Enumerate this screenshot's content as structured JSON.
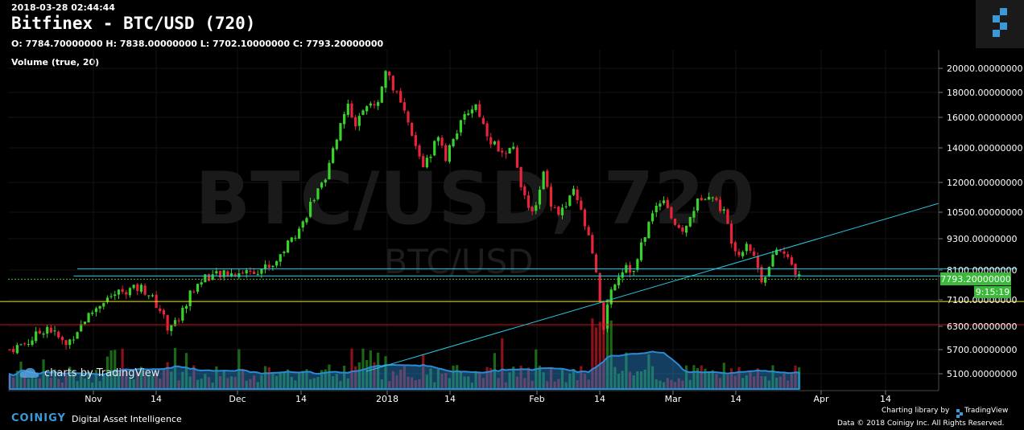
{
  "header": {
    "timestamp": "2018-03-28 02:44:44",
    "title": "Bitfinex - BTC/USD (720)",
    "ohlc": "O: 7784.70000000 H: 7838.00000000 L: 7702.10000000 C: 7793.20000000",
    "volume_legend": "Volume (true, 20)"
  },
  "watermark": {
    "big": "BTC/USD, 720",
    "small": "BTC/USD",
    "tradingview": "charts by TradingView"
  },
  "price_tag": {
    "value": "7793.20000000",
    "countdown": "9:15:19"
  },
  "footer": {
    "brand": "COINIGY",
    "tagline": "Digital Asset Intelligence",
    "charting_library": "Charting library by",
    "tradingview": "TradingView",
    "copyright": "Data © 2018 Coinigy Inc. All Rights Reserved."
  },
  "colors": {
    "up": "#3ad12c",
    "down": "#e8243a",
    "vol_up": "#1f7a1a",
    "vol_down": "#a3141f",
    "vol_ma": "#2a8ad4",
    "trend": "#27c7e0",
    "support_yellow": "#f0e62a",
    "support_red": "#c8141a",
    "current": "#3ab93a"
  },
  "chart_data": {
    "type": "candlestick",
    "y_ticks": [
      5100,
      5700,
      6300,
      7100,
      8100,
      9300,
      10500,
      12000,
      14000,
      16000,
      18000,
      20000
    ],
    "y_tick_labels": [
      "5100.00000000",
      "5700.00000000",
      "6300.00000000",
      "7100.00000000",
      "8100.00000000",
      "9300.00000000",
      "10500.00000000",
      "12000.00000000",
      "14000.00000000",
      "16000.00000000",
      "18000.00000000",
      "20000.00000000"
    ],
    "x_ticks": [
      "Nov",
      "14",
      "Dec",
      "14",
      "2018",
      "14",
      "Feb",
      "14",
      "Mar",
      "14",
      "Apr",
      "14"
    ],
    "close_path": [
      [
        0,
        5700
      ],
      [
        5,
        5900
      ],
      [
        10,
        6300
      ],
      [
        15,
        5800
      ],
      [
        20,
        6500
      ],
      [
        25,
        7100
      ],
      [
        30,
        7400
      ],
      [
        35,
        7500
      ],
      [
        37,
        7300
      ],
      [
        40,
        6800
      ],
      [
        42,
        6300
      ],
      [
        45,
        6500
      ],
      [
        48,
        7300
      ],
      [
        52,
        7900
      ],
      [
        55,
        7900
      ],
      [
        60,
        8000
      ],
      [
        65,
        8100
      ],
      [
        70,
        8300
      ],
      [
        75,
        9300
      ],
      [
        78,
        10000
      ],
      [
        80,
        10900
      ],
      [
        82,
        11500
      ],
      [
        84,
        12000
      ],
      [
        86,
        14000
      ],
      [
        88,
        15500
      ],
      [
        90,
        17000
      ],
      [
        92,
        15500
      ],
      [
        95,
        16600
      ],
      [
        98,
        17500
      ],
      [
        100,
        19700
      ],
      [
        102,
        18500
      ],
      [
        104,
        17000
      ],
      [
        106,
        15500
      ],
      [
        108,
        14000
      ],
      [
        110,
        13000
      ],
      [
        112,
        13500
      ],
      [
        114,
        15000
      ],
      [
        116,
        13500
      ],
      [
        118,
        14800
      ],
      [
        120,
        15500
      ],
      [
        122,
        16500
      ],
      [
        124,
        17000
      ],
      [
        126,
        15500
      ],
      [
        128,
        14500
      ],
      [
        130,
        14000
      ],
      [
        132,
        13500
      ],
      [
        134,
        14000
      ],
      [
        136,
        12000
      ],
      [
        138,
        10500
      ],
      [
        140,
        11000
      ],
      [
        142,
        12500
      ],
      [
        144,
        11000
      ],
      [
        146,
        10500
      ],
      [
        148,
        10800
      ],
      [
        150,
        11500
      ],
      [
        152,
        10500
      ],
      [
        154,
        9300
      ],
      [
        156,
        8100
      ],
      [
        158,
        6200
      ],
      [
        160,
        7500
      ],
      [
        162,
        8000
      ],
      [
        164,
        8300
      ],
      [
        166,
        8000
      ],
      [
        168,
        9000
      ],
      [
        170,
        10000
      ],
      [
        172,
        10800
      ],
      [
        174,
        11300
      ],
      [
        176,
        10300
      ],
      [
        178,
        9600
      ],
      [
        180,
        9800
      ],
      [
        182,
        10700
      ],
      [
        184,
        11300
      ],
      [
        186,
        11500
      ],
      [
        188,
        11000
      ],
      [
        190,
        10500
      ],
      [
        192,
        9300
      ],
      [
        194,
        8700
      ],
      [
        196,
        9200
      ],
      [
        198,
        8600
      ],
      [
        200,
        7800
      ],
      [
        202,
        8200
      ],
      [
        204,
        8900
      ],
      [
        206,
        8700
      ],
      [
        208,
        8300
      ],
      [
        210,
        7800
      ]
    ],
    "horizontal_lines": [
      {
        "value": 8150,
        "color": "trend",
        "from_day": 18,
        "to_day": 268
      },
      {
        "value": 7900,
        "color": "trend",
        "from_day": 17,
        "to_day": 266
      },
      {
        "value": 7050,
        "color": "support_yellow",
        "from_day": -5,
        "to_day": 278
      },
      {
        "value": 6350,
        "color": "support_red",
        "from_day": -5,
        "to_day": 278
      }
    ],
    "current_price": 7793.2
  }
}
